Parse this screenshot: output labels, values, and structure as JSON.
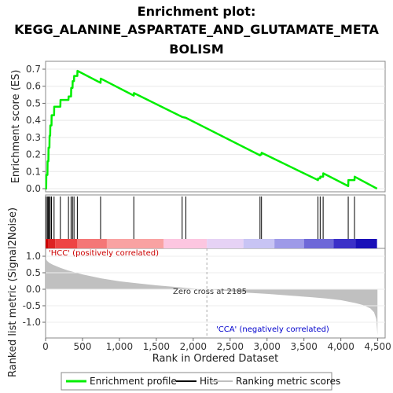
{
  "chart_data": {
    "type": "line",
    "title_lines": [
      "Enrichment plot:",
      "KEGG_ALANINE_ASPARTATE_AND_GLUTAMATE_META",
      "BOLISM"
    ],
    "xlabel": "Rank in Ordered Dataset",
    "ylabel_top": "Enrichment score (ES)",
    "ylabel_bottom": "Ranked list metric (Signal2Noise)",
    "xlim": [
      0,
      4600
    ],
    "x_ticks": [
      0,
      500,
      1000,
      1500,
      2000,
      2500,
      3000,
      3500,
      4000,
      4500
    ],
    "x_tick_labels": [
      "0",
      "500",
      "1,000",
      "1,500",
      "2,000",
      "2,500",
      "3,000",
      "3,500",
      "4,000",
      "4,500"
    ],
    "es_ylim": [
      0,
      0.72
    ],
    "es_ticks": [
      0.0,
      0.1,
      0.2,
      0.3,
      0.4,
      0.5,
      0.6,
      0.7
    ],
    "es_tick_labels": [
      "0.0",
      "0.1",
      "0.2",
      "0.3",
      "0.4",
      "0.5",
      "0.6",
      "0.7"
    ],
    "metric_ylim": [
      -1.5,
      1.0
    ],
    "metric_ticks": [
      1.0,
      0.5,
      0.0,
      -0.5,
      -1.0
    ],
    "metric_tick_labels": [
      "1.0",
      "0.5",
      "0.0",
      "-0.5",
      "-1.0"
    ],
    "enrichment_profile": {
      "name": "Enrichment profile",
      "color": "#00ee00",
      "x": [
        0,
        8,
        10,
        25,
        27,
        38,
        40,
        52,
        54,
        62,
        64,
        80,
        82,
        115,
        117,
        200,
        202,
        310,
        312,
        345,
        347,
        365,
        367,
        385,
        387,
        430,
        432,
        745,
        747,
        1195,
        1197,
        1850,
        1900,
        2905,
        2907,
        2925,
        2927,
        3690,
        3692,
        3720,
        3722,
        3760,
        3762,
        4100,
        4102,
        4185,
        4187,
        4490
      ],
      "y": [
        0.0,
        0.0,
        0.08,
        0.08,
        0.16,
        0.16,
        0.24,
        0.24,
        0.31,
        0.31,
        0.37,
        0.37,
        0.43,
        0.43,
        0.48,
        0.48,
        0.52,
        0.52,
        0.54,
        0.54,
        0.59,
        0.59,
        0.63,
        0.63,
        0.66,
        0.66,
        0.69,
        0.62,
        0.645,
        0.545,
        0.56,
        0.42,
        0.415,
        0.195,
        0.2,
        0.2,
        0.21,
        0.05,
        0.06,
        0.06,
        0.07,
        0.07,
        0.09,
        0.015,
        0.05,
        0.05,
        0.07,
        0.0
      ]
    },
    "hits": [
      8,
      25,
      38,
      52,
      62,
      80,
      115,
      200,
      310,
      345,
      365,
      385,
      430,
      745,
      1195,
      1850,
      1900,
      2905,
      2925,
      3690,
      3720,
      3760,
      4100,
      4185
    ],
    "ranked_metric": {
      "name": "Ranking metric scores",
      "color": "#c0c0c0",
      "x": [
        0,
        5,
        20,
        50,
        100,
        200,
        300,
        500,
        750,
        1000,
        1250,
        1500,
        1750,
        2000,
        2185,
        2400,
        2700,
        3000,
        3300,
        3600,
        3800,
        4000,
        4200,
        4300,
        4400,
        4450,
        4480,
        4490,
        4496
      ],
      "y": [
        0.98,
        0.92,
        0.86,
        0.8,
        0.74,
        0.65,
        0.57,
        0.45,
        0.33,
        0.24,
        0.18,
        0.12,
        0.07,
        0.02,
        0.0,
        -0.04,
        -0.1,
        -0.14,
        -0.19,
        -0.24,
        -0.28,
        -0.33,
        -0.42,
        -0.48,
        -0.58,
        -0.7,
        -0.9,
        -1.2,
        -1.4
      ]
    },
    "colorbar": [
      "#cc0000",
      "#dd2222",
      "#ee4444",
      "#f47777",
      "#f9a2a2",
      "#fcc6e0",
      "#e6d2f5",
      "#c8c4f4",
      "#9e9ae8",
      "#6e68d8",
      "#3b30c8",
      "#1a10b8"
    ],
    "colorbar_bounds": [
      0,
      40,
      130,
      430,
      830,
      1600,
      2185,
      2680,
      3100,
      3500,
      3900,
      4200,
      4490
    ],
    "zero_cross_label": "Zero cross at 2185",
    "zero_cross_x": 2185,
    "positive_label": "'HCC' (positively correlated)",
    "negative_label": "'CCA' (negatively correlated)",
    "positive_color": "#cc0000",
    "negative_color": "#0000cc",
    "legend": {
      "items": [
        {
          "name": "Enrichment profile",
          "color": "#00ee00"
        },
        {
          "name": "Hits",
          "color": "#000000"
        },
        {
          "name": "Ranking metric scores",
          "color": "#c0c0c0"
        }
      ]
    }
  }
}
